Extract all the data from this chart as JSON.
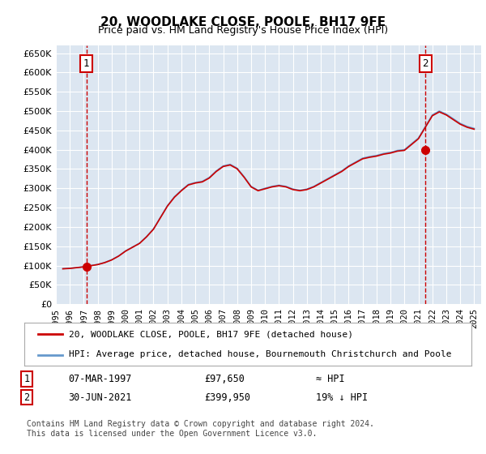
{
  "title": "20, WOODLAKE CLOSE, POOLE, BH17 9FE",
  "subtitle": "Price paid vs. HM Land Registry's House Price Index (HPI)",
  "ylim": [
    0,
    670000
  ],
  "yticks": [
    0,
    50000,
    100000,
    150000,
    200000,
    250000,
    300000,
    350000,
    400000,
    450000,
    500000,
    550000,
    600000,
    650000
  ],
  "xlim_start": 1995.0,
  "xlim_end": 2025.5,
  "point1_x": 1997.18,
  "point1_y": 97650,
  "point1_label": "1",
  "point2_x": 2021.5,
  "point2_y": 399950,
  "point2_label": "2",
  "sale_color": "#cc0000",
  "hpi_color": "#6699cc",
  "dashed_color": "#cc0000",
  "bg_color": "#dce6f1",
  "grid_color": "#ffffff",
  "legend_line1": "20, WOODLAKE CLOSE, POOLE, BH17 9FE (detached house)",
  "legend_line2": "HPI: Average price, detached house, Bournemouth Christchurch and Poole",
  "table_row1_num": "1",
  "table_row1_date": "07-MAR-1997",
  "table_row1_price": "£97,650",
  "table_row1_hpi": "≈ HPI",
  "table_row2_num": "2",
  "table_row2_date": "30-JUN-2021",
  "table_row2_price": "£399,950",
  "table_row2_hpi": "19% ↓ HPI",
  "footer": "Contains HM Land Registry data © Crown copyright and database right 2024.\nThis data is licensed under the Open Government Licence v3.0.",
  "xtick_years": [
    1995,
    1996,
    1997,
    1998,
    1999,
    2000,
    2001,
    2002,
    2003,
    2004,
    2005,
    2006,
    2007,
    2008,
    2009,
    2010,
    2011,
    2012,
    2013,
    2014,
    2015,
    2016,
    2017,
    2018,
    2019,
    2020,
    2021,
    2022,
    2023,
    2024,
    2025
  ]
}
